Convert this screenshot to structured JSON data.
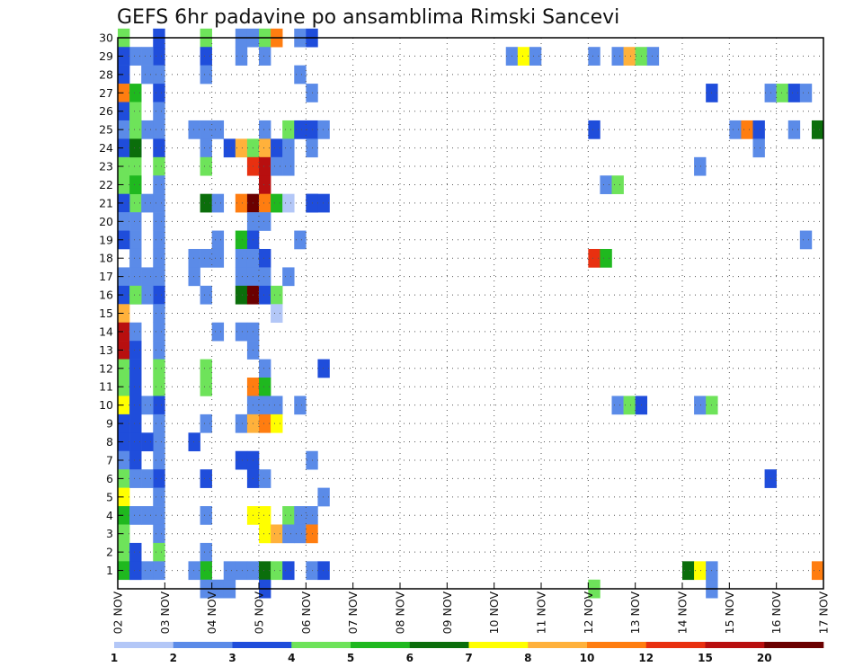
{
  "chart_data": {
    "type": "heatmap",
    "title": "GEFS 6hr padavine po ansamblima Rimski Sancevi",
    "xlabel": "",
    "ylabel": "",
    "x_tick_labels": [
      "02 NOV",
      "03 NOV",
      "04 NOV",
      "05 NOV",
      "06 NOV",
      "07 NOV",
      "08 NOV",
      "09 NOV",
      "10 NOV",
      "11 NOV",
      "12 NOV",
      "13 NOV",
      "14 NOV",
      "15 NOV",
      "16 NOV",
      "17 NOV"
    ],
    "y_tick_labels": [
      1,
      2,
      3,
      4,
      5,
      6,
      7,
      8,
      9,
      10,
      11,
      12,
      13,
      14,
      15,
      16,
      17,
      18,
      19,
      20,
      21,
      22,
      23,
      24,
      25,
      26,
      27,
      28,
      29,
      30
    ],
    "xlim": [
      0,
      60
    ],
    "ylim": [
      0,
      30
    ],
    "grid": true,
    "legend_position": "bottom",
    "levels": [
      1,
      2,
      3,
      4,
      5,
      6,
      7,
      8,
      10,
      12,
      15,
      20
    ],
    "level_labels": [
      "1",
      "2",
      "3",
      "4",
      "5",
      "6",
      "7",
      "8",
      "10",
      "12",
      "15",
      "20"
    ],
    "colors": [
      "#b3c7f7",
      "#5b8be8",
      "#1f4ddb",
      "#6ee35a",
      "#1fb81f",
      "#0b6e0b",
      "#ffff00",
      "#ffb13b",
      "#ff7d10",
      "#e83010",
      "#b80f0f",
      "#6b0000"
    ],
    "cells": [
      [
        0,
        30,
        3
      ],
      [
        3,
        30,
        2
      ],
      [
        3,
        29,
        2
      ],
      [
        3,
        28,
        1
      ],
      [
        3,
        27,
        2
      ],
      [
        3,
        26,
        1
      ],
      [
        3,
        25,
        1
      ],
      [
        3,
        24,
        2
      ],
      [
        3,
        23,
        3
      ],
      [
        3,
        22,
        1
      ],
      [
        3,
        21,
        1
      ],
      [
        3,
        20,
        1
      ],
      [
        3,
        19,
        1
      ],
      [
        3,
        18,
        1
      ],
      [
        3,
        17,
        1
      ],
      [
        3,
        16,
        2
      ],
      [
        3,
        15,
        1
      ],
      [
        3,
        14,
        1
      ],
      [
        3,
        13,
        1
      ],
      [
        3,
        12,
        3
      ],
      [
        3,
        11,
        3
      ],
      [
        3,
        10,
        2
      ],
      [
        3,
        9,
        1
      ],
      [
        3,
        8,
        1
      ],
      [
        3,
        7,
        1
      ],
      [
        3,
        6,
        2
      ],
      [
        3,
        5,
        1
      ],
      [
        3,
        4,
        1
      ],
      [
        3,
        3,
        1
      ],
      [
        3,
        2,
        3
      ],
      [
        3,
        1,
        1
      ],
      [
        1,
        29,
        1
      ],
      [
        1,
        25,
        1
      ],
      [
        1,
        24,
        2
      ],
      [
        1,
        23,
        3
      ],
      [
        1,
        22,
        3
      ],
      [
        1,
        21,
        3
      ],
      [
        1,
        19,
        1
      ],
      [
        1,
        16,
        2
      ],
      [
        1,
        1,
        1
      ],
      [
        2,
        29,
        1
      ],
      [
        2,
        28,
        1
      ],
      [
        2,
        25,
        1
      ],
      [
        2,
        21,
        1
      ],
      [
        2,
        17,
        1
      ],
      [
        2,
        16,
        1
      ],
      [
        2,
        10,
        1
      ],
      [
        2,
        8,
        2
      ],
      [
        2,
        6,
        1
      ],
      [
        2,
        4,
        1
      ],
      [
        2,
        1,
        1
      ],
      [
        0,
        29,
        2
      ],
      [
        0,
        28,
        2
      ],
      [
        0,
        27,
        8
      ],
      [
        0,
        26,
        2
      ],
      [
        0,
        25,
        1
      ],
      [
        0,
        24,
        2
      ],
      [
        0,
        23,
        3
      ],
      [
        0,
        22,
        3
      ],
      [
        0,
        21,
        2
      ],
      [
        0,
        20,
        1
      ],
      [
        0,
        19,
        2
      ],
      [
        0,
        17,
        1
      ],
      [
        0,
        16,
        2
      ],
      [
        0,
        15,
        7
      ],
      [
        0,
        14,
        10
      ],
      [
        0,
        13,
        10
      ],
      [
        0,
        12,
        3
      ],
      [
        0,
        11,
        3
      ],
      [
        0,
        10,
        6
      ],
      [
        0,
        9,
        2
      ],
      [
        0,
        8,
        2
      ],
      [
        0,
        7,
        1
      ],
      [
        0,
        6,
        3
      ],
      [
        0,
        5,
        6
      ],
      [
        0,
        4,
        4
      ],
      [
        0,
        3,
        3
      ],
      [
        0,
        2,
        3
      ],
      [
        0,
        1,
        4
      ],
      [
        1,
        27,
        4
      ],
      [
        1,
        26,
        3
      ],
      [
        1,
        25,
        3
      ],
      [
        1,
        24,
        5
      ],
      [
        1,
        22,
        4
      ],
      [
        1,
        20,
        1
      ],
      [
        1,
        18,
        1
      ],
      [
        1,
        17,
        1
      ],
      [
        1,
        16,
        3
      ],
      [
        1,
        14,
        1
      ],
      [
        1,
        13,
        2
      ],
      [
        1,
        12,
        2
      ],
      [
        1,
        11,
        2
      ],
      [
        1,
        10,
        2
      ],
      [
        1,
        9,
        2
      ],
      [
        1,
        8,
        2
      ],
      [
        1,
        7,
        2
      ],
      [
        1,
        6,
        1
      ],
      [
        1,
        4,
        1
      ],
      [
        1,
        2,
        2
      ],
      [
        1,
        1,
        2
      ],
      [
        7,
        30,
        3
      ],
      [
        7,
        29,
        2
      ],
      [
        7,
        28,
        1
      ],
      [
        7,
        25,
        1
      ],
      [
        7,
        24,
        1
      ],
      [
        7,
        23,
        3
      ],
      [
        7,
        21,
        5
      ],
      [
        7,
        18,
        1
      ],
      [
        7,
        16,
        1
      ],
      [
        7,
        12,
        3
      ],
      [
        7,
        11,
        3
      ],
      [
        7,
        9,
        1
      ],
      [
        7,
        6,
        2
      ],
      [
        7,
        4,
        1
      ],
      [
        7,
        2,
        1
      ],
      [
        7,
        1,
        4
      ],
      [
        7,
        0,
        1
      ],
      [
        6,
        25,
        1
      ],
      [
        6,
        18,
        1
      ],
      [
        6,
        17,
        1
      ],
      [
        6,
        8,
        2
      ],
      [
        6,
        1,
        1
      ],
      [
        8,
        25,
        1
      ],
      [
        8,
        21,
        1
      ],
      [
        8,
        19,
        1
      ],
      [
        8,
        18,
        1
      ],
      [
        8,
        14,
        1
      ],
      [
        8,
        0,
        1
      ],
      [
        9,
        24,
        2
      ],
      [
        9,
        0,
        1
      ],
      [
        9,
        1,
        1
      ],
      [
        10,
        30,
        1
      ],
      [
        10,
        29,
        1
      ],
      [
        10,
        24,
        7
      ],
      [
        10,
        21,
        8
      ],
      [
        10,
        19,
        4
      ],
      [
        10,
        18,
        1
      ],
      [
        10,
        17,
        1
      ],
      [
        10,
        16,
        5
      ],
      [
        10,
        14,
        1
      ],
      [
        10,
        9,
        1
      ],
      [
        10,
        7,
        2
      ],
      [
        10,
        1,
        1
      ],
      [
        11,
        30,
        1
      ],
      [
        11,
        24,
        3
      ],
      [
        11,
        23,
        9
      ],
      [
        11,
        21,
        11
      ],
      [
        11,
        20,
        1
      ],
      [
        11,
        19,
        2
      ],
      [
        11,
        18,
        1
      ],
      [
        11,
        17,
        1
      ],
      [
        11,
        16,
        11
      ],
      [
        11,
        14,
        1
      ],
      [
        11,
        13,
        1
      ],
      [
        11,
        11,
        8
      ],
      [
        11,
        10,
        1
      ],
      [
        11,
        9,
        7
      ],
      [
        11,
        7,
        2
      ],
      [
        11,
        6,
        2
      ],
      [
        11,
        4,
        6
      ],
      [
        11,
        1,
        1
      ],
      [
        12,
        30,
        3
      ],
      [
        12,
        29,
        1
      ],
      [
        12,
        25,
        1
      ],
      [
        12,
        24,
        7
      ],
      [
        12,
        23,
        10
      ],
      [
        12,
        22,
        10
      ],
      [
        12,
        21,
        8
      ],
      [
        12,
        20,
        1
      ],
      [
        12,
        18,
        2
      ],
      [
        12,
        17,
        1
      ],
      [
        12,
        16,
        2
      ],
      [
        12,
        12,
        1
      ],
      [
        12,
        11,
        4
      ],
      [
        12,
        10,
        1
      ],
      [
        12,
        9,
        8
      ],
      [
        12,
        6,
        1
      ],
      [
        12,
        4,
        6
      ],
      [
        12,
        3,
        6
      ],
      [
        12,
        1,
        5
      ],
      [
        12,
        0,
        2
      ],
      [
        13,
        30,
        8
      ],
      [
        13,
        24,
        2
      ],
      [
        13,
        23,
        1
      ],
      [
        13,
        21,
        4
      ],
      [
        13,
        16,
        3
      ],
      [
        13,
        15,
        0
      ],
      [
        13,
        10,
        1
      ],
      [
        13,
        9,
        6
      ],
      [
        13,
        3,
        7
      ],
      [
        13,
        1,
        3
      ],
      [
        14,
        25,
        3
      ],
      [
        14,
        24,
        1
      ],
      [
        14,
        23,
        1
      ],
      [
        14,
        21,
        0
      ],
      [
        14,
        17,
        1
      ],
      [
        14,
        4,
        3
      ],
      [
        14,
        3,
        1
      ],
      [
        14,
        1,
        2
      ],
      [
        15,
        30,
        1
      ],
      [
        15,
        28,
        1
      ],
      [
        15,
        25,
        2
      ],
      [
        15,
        19,
        1
      ],
      [
        15,
        10,
        1
      ],
      [
        15,
        4,
        1
      ],
      [
        15,
        3,
        1
      ],
      [
        16,
        27,
        1
      ],
      [
        16,
        25,
        2
      ],
      [
        16,
        24,
        1
      ],
      [
        16,
        21,
        2
      ],
      [
        16,
        7,
        1
      ],
      [
        16,
        4,
        1
      ],
      [
        16,
        3,
        8
      ],
      [
        16,
        1,
        1
      ],
      [
        17,
        25,
        1
      ],
      [
        17,
        12,
        2
      ],
      [
        17,
        5,
        1
      ],
      [
        17,
        1,
        2
      ],
      [
        16,
        30,
        2
      ],
      [
        16,
        21,
        2
      ],
      [
        17,
        21,
        2
      ],
      [
        33,
        29,
        1
      ],
      [
        34,
        29,
        6
      ],
      [
        35,
        29,
        1
      ],
      [
        40,
        29,
        1
      ],
      [
        42,
        29,
        1
      ],
      [
        43,
        29,
        7
      ],
      [
        44,
        29,
        3
      ],
      [
        45,
        29,
        1
      ],
      [
        40,
        25,
        2
      ],
      [
        40,
        18,
        9
      ],
      [
        41,
        18,
        4
      ],
      [
        41,
        22,
        1
      ],
      [
        42,
        22,
        3
      ],
      [
        40,
        0,
        3
      ],
      [
        42,
        10,
        1
      ],
      [
        43,
        10,
        3
      ],
      [
        44,
        10,
        2
      ],
      [
        49,
        23,
        1
      ],
      [
        49,
        10,
        1
      ],
      [
        50,
        10,
        3
      ],
      [
        50,
        27,
        2
      ],
      [
        50,
        0,
        1
      ],
      [
        48,
        1,
        5
      ],
      [
        49,
        1,
        6
      ],
      [
        50,
        1,
        1
      ],
      [
        52,
        25,
        1
      ],
      [
        53,
        25,
        8
      ],
      [
        54,
        25,
        2
      ],
      [
        54,
        24,
        1
      ],
      [
        55,
        27,
        1
      ],
      [
        56,
        27,
        3
      ],
      [
        57,
        27,
        2
      ],
      [
        58,
        27,
        1
      ],
      [
        57,
        25,
        1
      ],
      [
        59,
        25,
        5
      ],
      [
        58,
        19,
        1
      ],
      [
        55,
        6,
        2
      ],
      [
        59,
        1,
        8
      ]
    ]
  }
}
